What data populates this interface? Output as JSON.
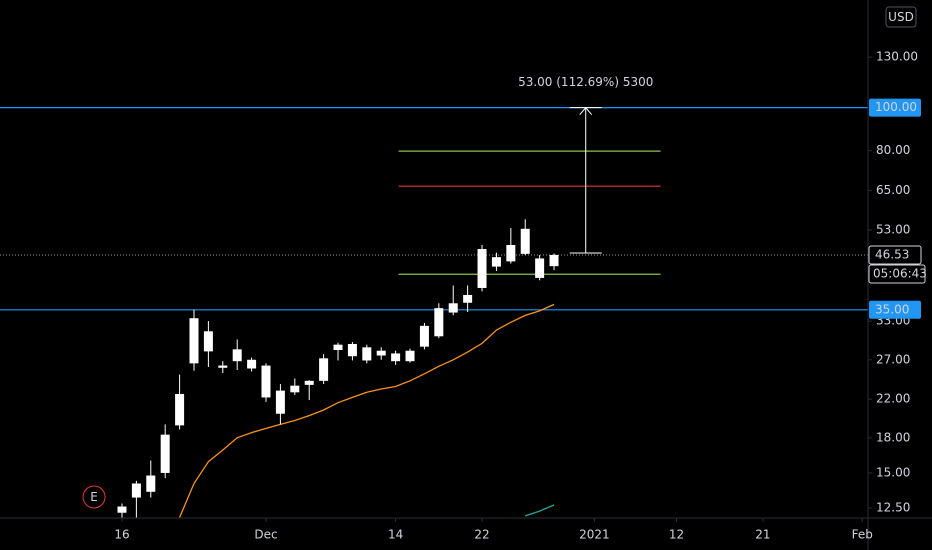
{
  "chart_data": {
    "type": "candlestick",
    "log_scale": true,
    "xlim": [
      -8.47,
      51.8
    ],
    "ylim": [
      11.87,
      174.9
    ],
    "xticks": [
      {
        "value": 0,
        "label": "16"
      },
      {
        "value": 10,
        "label": "Dec"
      },
      {
        "value": 19,
        "label": "14"
      },
      {
        "value": 25,
        "label": "22"
      },
      {
        "value": 32.8,
        "label": "2021"
      },
      {
        "value": 38.5,
        "label": "12"
      },
      {
        "value": 44.5,
        "label": "21"
      },
      {
        "value": 51.4,
        "label": "Feb"
      }
    ],
    "yticks": [
      {
        "value": 12.5,
        "label": "12.50"
      },
      {
        "value": 15,
        "label": "15.00"
      },
      {
        "value": 18,
        "label": "18.00"
      },
      {
        "value": 22,
        "label": "22.00"
      },
      {
        "value": 27,
        "label": "27.00"
      },
      {
        "value": 33,
        "label": "33.00"
      },
      {
        "value": 53,
        "label": "53.00"
      },
      {
        "value": 65,
        "label": "65.00"
      },
      {
        "value": 80,
        "label": "80.00"
      },
      {
        "value": 130,
        "label": "130.00"
      }
    ],
    "currency": "USD",
    "candle_color": "#ffffff",
    "open": [
      12.2,
      13.2,
      13.6,
      15.0,
      19.2,
      26.5,
      31.3,
      26.2,
      28.5,
      27.0,
      26.2,
      23.0,
      22.8,
      23.7,
      24.2,
      28.4,
      29.3,
      28.8,
      27.6,
      27.9,
      26.8,
      28.9,
      30.5,
      34.5,
      36.3,
      39.2,
      43.8,
      45.0,
      53.3,
      45.7,
      43.9
    ],
    "high": [
      12.8,
      14.4,
      16.0,
      19.3,
      25.0,
      35.0,
      33.0,
      26.8,
      30.0,
      27.3,
      26.5,
      23.8,
      24.5,
      24.3,
      27.8,
      29.5,
      29.6,
      29.2,
      28.8,
      28.3,
      28.6,
      32.7,
      36.2,
      39.7,
      39.7,
      49.0,
      47.1,
      53.5,
      56.0,
      46.5,
      46.9
    ],
    "low": [
      11.9,
      11.9,
      13.2,
      14.6,
      18.8,
      25.5,
      26.0,
      25.2,
      25.6,
      25.4,
      21.7,
      19.3,
      22.5,
      21.9,
      23.8,
      26.9,
      26.9,
      26.5,
      27.0,
      26.3,
      26.6,
      28.5,
      30.2,
      34.0,
      34.6,
      38.5,
      42.8,
      44.5,
      46.5,
      40.8,
      43.0
    ],
    "close": [
      12.6,
      14.2,
      14.8,
      18.3,
      22.6,
      33.5,
      28.2,
      25.9,
      26.8,
      25.8,
      22.2,
      20.4,
      23.6,
      24.2,
      27.2,
      29.2,
      27.5,
      26.9,
      28.3,
      26.8,
      28.3,
      32.2,
      35.3,
      36.2,
      37.8,
      48.0,
      46.0,
      49.0,
      46.8,
      41.3,
      46.53
    ],
    "moving_average": {
      "color": "#f7931e",
      "values": [
        null,
        null,
        null,
        null,
        11.9,
        14.2,
        15.9,
        16.9,
        18.0,
        18.5,
        18.9,
        19.3,
        19.7,
        20.2,
        20.8,
        21.6,
        22.2,
        22.8,
        23.2,
        23.5,
        24.2,
        25.1,
        26.1,
        27.0,
        28.1,
        29.4,
        31.5,
        32.8,
        34.0,
        34.8,
        36.0
      ]
    },
    "indicator": {
      "color": "#26a69a",
      "values": [
        null,
        null,
        null,
        null,
        null,
        null,
        null,
        null,
        null,
        null,
        null,
        null,
        null,
        null,
        null,
        null,
        null,
        null,
        null,
        null,
        null,
        null,
        null,
        null,
        null,
        null,
        null,
        null,
        12.0,
        12.3,
        12.7
      ]
    },
    "price_lines": [
      {
        "value": 100,
        "label": "100.00",
        "color": "#2196f3"
      },
      {
        "value": 35,
        "label": "35.00",
        "color": "#2196f3"
      }
    ],
    "levels": {
      "x_range": [
        19.2,
        37.4
      ],
      "lines": [
        {
          "value": 79.8,
          "color": "#8bc34a"
        },
        {
          "value": 66.5,
          "color": "#e53935"
        },
        {
          "value": 42.1,
          "color": "#8bc34a"
        }
      ]
    },
    "last_price": 46.53,
    "countdown": "05:06:43",
    "measure": {
      "x": 32.2,
      "from": 47,
      "to": 100,
      "label": "53.00 (112.69%) 5300"
    },
    "earnings_marker": {
      "x": -1.94,
      "label": "E"
    }
  }
}
